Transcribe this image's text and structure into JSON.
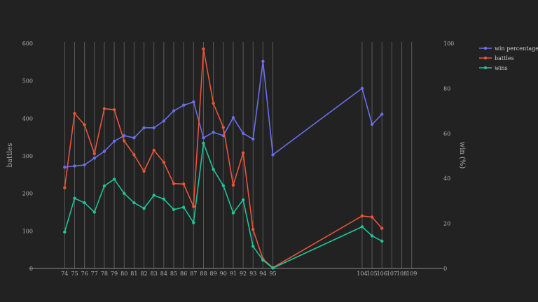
{
  "chart_data": {
    "type": "line",
    "x_ticks": [
      74,
      75,
      76,
      77,
      78,
      79,
      80,
      81,
      82,
      83,
      84,
      85,
      86,
      87,
      88,
      89,
      90,
      91,
      92,
      93,
      94,
      95,
      104,
      105,
      106,
      107,
      108,
      109
    ],
    "ylabel_left": "battles",
    "ylabel_right": "win (%)",
    "ylim_left": [
      0,
      600
    ],
    "ylim_right": [
      0,
      100
    ],
    "yticks_left": [
      0,
      100,
      200,
      300,
      400,
      500,
      600
    ],
    "yticks_right": [
      0,
      20,
      40,
      60,
      80,
      100
    ],
    "grid": "vertical",
    "legend_position": "top-right",
    "series": [
      {
        "name": "win percentage",
        "axis": "right",
        "color": "#6a6ff0",
        "x": [
          74,
          75,
          76,
          77,
          78,
          79,
          80,
          81,
          82,
          83,
          84,
          85,
          86,
          87,
          88,
          89,
          90,
          91,
          92,
          93,
          94,
          95,
          104,
          105,
          106
        ],
        "values": [
          45,
          45.5,
          46,
          49,
          52,
          56.5,
          59,
          58,
          62.5,
          62.5,
          65.5,
          70,
          72.5,
          74,
          58,
          60.5,
          59,
          67,
          60,
          57.5,
          92,
          50.5,
          80,
          64,
          68.5
        ]
      },
      {
        "name": "battles",
        "axis": "left",
        "color": "#e8553a",
        "x": [
          74,
          75,
          76,
          77,
          78,
          79,
          80,
          81,
          82,
          83,
          84,
          85,
          86,
          87,
          88,
          89,
          90,
          91,
          92,
          93,
          94,
          95,
          104,
          105,
          106
        ],
        "values": [
          215,
          413,
          383,
          306,
          426,
          423,
          340,
          303,
          259,
          315,
          283,
          226,
          225,
          165,
          585,
          440,
          376,
          222,
          308,
          104,
          25,
          2,
          140,
          137,
          107
        ]
      },
      {
        "name": "wins",
        "axis": "left",
        "color": "#1fc499",
        "x": [
          74,
          75,
          76,
          77,
          78,
          79,
          80,
          81,
          82,
          83,
          84,
          85,
          86,
          87,
          88,
          89,
          90,
          91,
          92,
          93,
          94,
          95,
          104,
          105,
          106
        ],
        "values": [
          97,
          187,
          175,
          150,
          220,
          238,
          200,
          175,
          160,
          195,
          185,
          157,
          163,
          122,
          334,
          264,
          221,
          148,
          183,
          59,
          22,
          1,
          111,
          87,
          73
        ]
      }
    ]
  }
}
